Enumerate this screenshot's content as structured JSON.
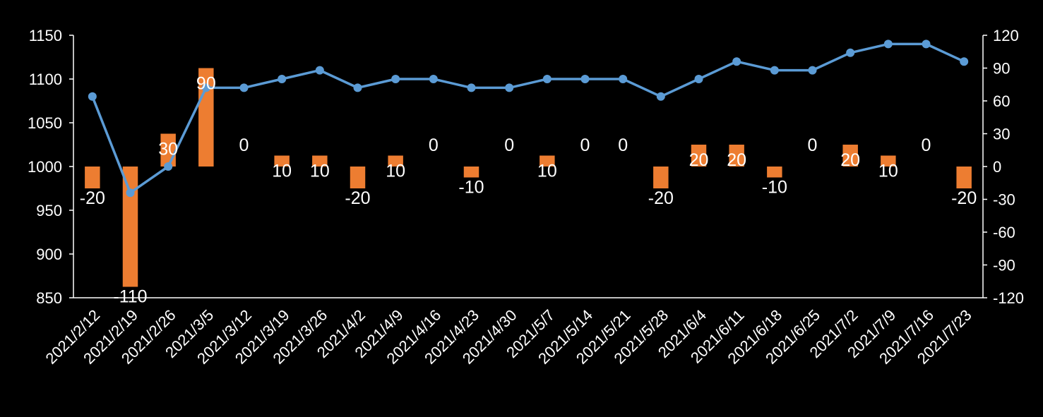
{
  "chart_data": {
    "type": "bar+line",
    "title": "",
    "xlabel": "",
    "ylabel": "",
    "ylabel_right": "",
    "categories": [
      "2021/2/12",
      "2021/2/19",
      "2021/2/26",
      "2021/3/5",
      "2021/3/12",
      "2021/3/19",
      "2021/3/26",
      "2021/4/2",
      "2021/4/9",
      "2021/4/16",
      "2021/4/23",
      "2021/4/30",
      "2021/5/7",
      "2021/5/14",
      "2021/5/21",
      "2021/5/28",
      "2021/6/4",
      "2021/6/11",
      "2021/6/18",
      "2021/6/25",
      "2021/7/2",
      "2021/7/9",
      "2021/7/16",
      "2021/7/23"
    ],
    "series": [
      {
        "type": "line",
        "axis": "left",
        "color": "#5B9BD5",
        "values": [
          1080,
          970,
          1000,
          1090,
          1090,
          1100,
          1110,
          1090,
          1100,
          1100,
          1090,
          1090,
          1100,
          1100,
          1100,
          1080,
          1100,
          1120,
          1110,
          1110,
          1130,
          1140,
          1140,
          1120
        ]
      },
      {
        "type": "bar",
        "axis": "right",
        "color": "#ED7D31",
        "values": [
          -20,
          -110,
          30,
          90,
          0,
          10,
          10,
          -20,
          10,
          0,
          -10,
          0,
          10,
          0,
          0,
          -20,
          20,
          20,
          -10,
          0,
          20,
          10,
          0,
          -20
        ],
        "data_labels": [
          "-20",
          "-110",
          "30",
          "90",
          "0",
          "10",
          "10",
          "-20",
          "10",
          "0",
          "-10",
          "0",
          "10",
          "0",
          "0",
          "-20",
          "20",
          "20",
          "-10",
          "0",
          "20",
          "10",
          "0",
          "-20"
        ]
      }
    ],
    "y_left": {
      "min": 850,
      "max": 1150,
      "ticks": [
        "850",
        "900",
        "950",
        "1000",
        "1050",
        "1100",
        "1150"
      ]
    },
    "y_right": {
      "min": -120,
      "max": 120,
      "ticks": [
        "-120",
        "-90",
        "-60",
        "-30",
        "0",
        "30",
        "60",
        "90",
        "120"
      ]
    },
    "grid": false,
    "legend": "none"
  }
}
